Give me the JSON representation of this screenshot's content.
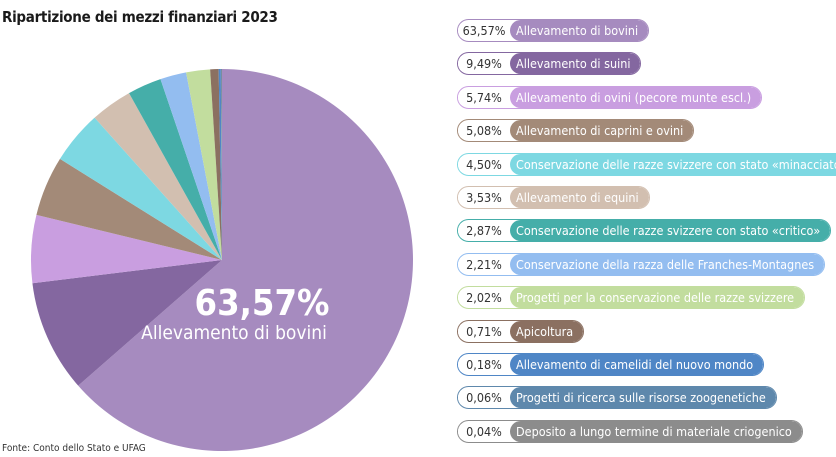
{
  "title": "Ripartizione dei mezzi finanziari 2023",
  "source": "Fonte: Conto dello Stato e UFAG",
  "chart_data": {
    "type": "pie",
    "title": "Ripartizione dei mezzi finanziari 2023",
    "center_label": {
      "value": "63,57%",
      "label": "Allevamento di bovini"
    },
    "start": "top",
    "direction": "clockwise",
    "legend_position": "right",
    "slices": [
      {
        "label": "Allevamento di bovini",
        "value": 63.57,
        "display": "63,57%",
        "color": "#a68bbf"
      },
      {
        "label": "Allevamento di suini",
        "value": 9.49,
        "display": "9,49%",
        "color": "#8467a0"
      },
      {
        "label": "Allevamento di ovini (pecore munte escl.)",
        "value": 5.74,
        "display": "5,74%",
        "color": "#c99ee0"
      },
      {
        "label": "Allevamento di caprini e ovini",
        "value": 5.08,
        "display": "5,08%",
        "color": "#a38a78"
      },
      {
        "label": "Conservazione delle razze svizzere con stato «minacciato»",
        "value": 4.5,
        "display": "4,50%",
        "color": "#7dd8e2"
      },
      {
        "label": "Allevamento di equini",
        "value": 3.53,
        "display": "3,53%",
        "color": "#d2bfb0"
      },
      {
        "label": "Conservazione delle razze svizzere con stato «critico»",
        "value": 2.87,
        "display": "2,87%",
        "color": "#45aea9"
      },
      {
        "label": "Conservazione della razza delle Franches-Montagnes",
        "value": 2.21,
        "display": "2,21%",
        "color": "#93bdf0"
      },
      {
        "label": "Progetti per la conservazione delle razze svizzere",
        "value": 2.02,
        "display": "2,02%",
        "color": "#c2dd9e"
      },
      {
        "label": "Apicoltura",
        "value": 0.71,
        "display": "0,71%",
        "color": "#8b7061"
      },
      {
        "label": "Allevamento di camelidi del nuovo mondo",
        "value": 0.18,
        "display": "0,18%",
        "color": "#4f86c6"
      },
      {
        "label": "Progetti di ricerca sulle risorse zoogenetiche",
        "value": 0.06,
        "display": "0,06%",
        "color": "#5e88ac"
      },
      {
        "label": "Deposito a lungo termine di materiale criogenico",
        "value": 0.04,
        "display": "0,04%",
        "color": "#8c8c8c"
      }
    ]
  }
}
